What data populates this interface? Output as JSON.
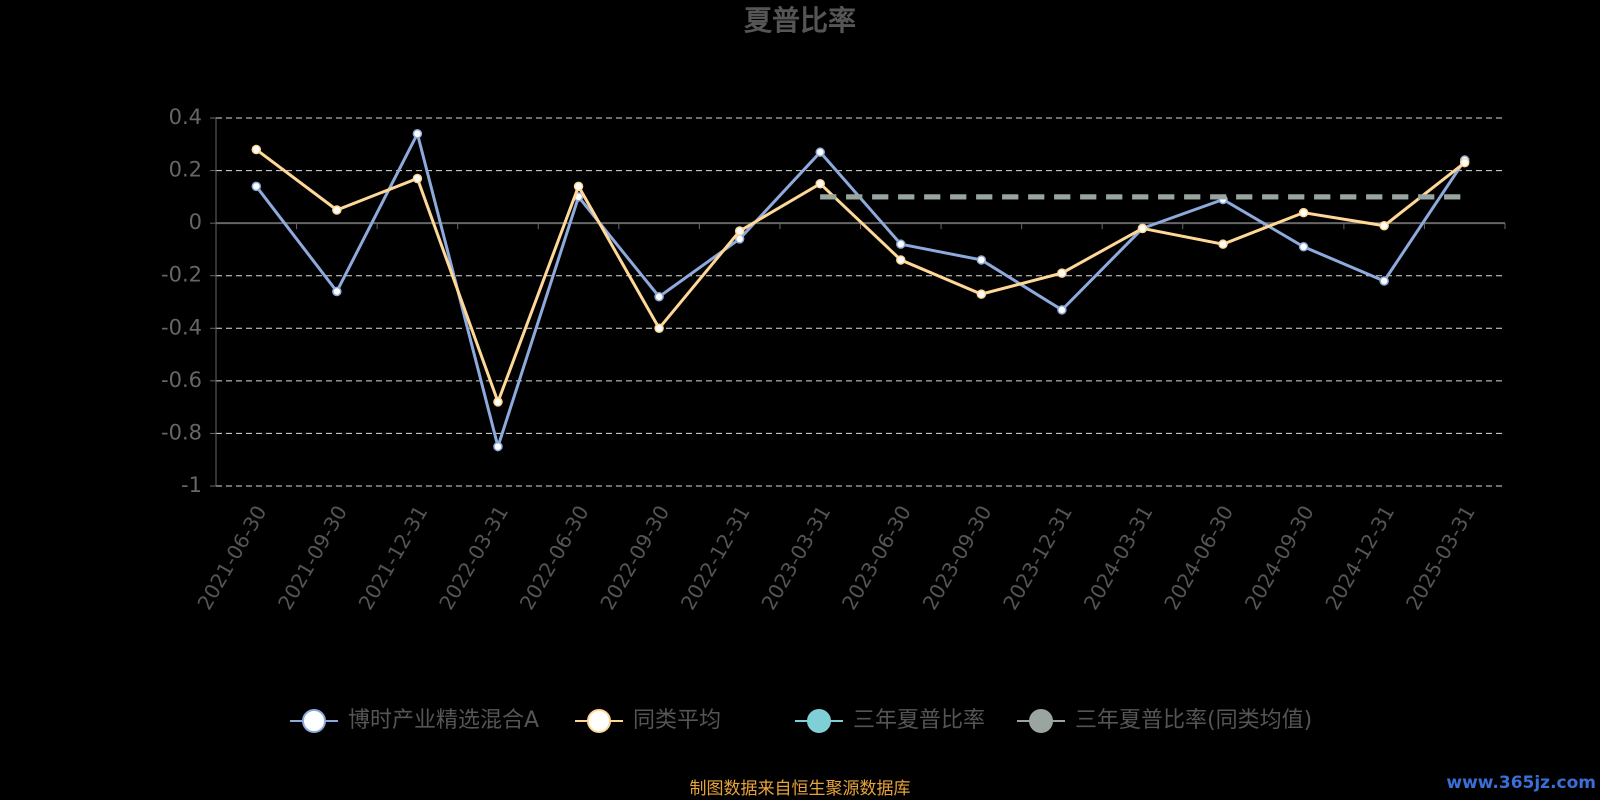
{
  "chart_data": {
    "type": "line",
    "title": "夏普比率",
    "categories": [
      "2021-06-30",
      "2021-09-30",
      "2021-12-31",
      "2022-03-31",
      "2022-06-30",
      "2022-09-30",
      "2022-12-31",
      "2023-03-31",
      "2023-06-30",
      "2023-09-30",
      "2023-12-31",
      "2024-03-31",
      "2024-06-30",
      "2024-09-30",
      "2024-12-31",
      "2025-03-31"
    ],
    "series": [
      {
        "name": "博时产业精选混合A",
        "color": "#8eaadc",
        "values": [
          0.14,
          -0.26,
          0.34,
          -0.85,
          0.1,
          -0.28,
          -0.06,
          0.27,
          -0.08,
          -0.14,
          -0.33,
          -0.02,
          0.09,
          -0.09,
          -0.22,
          0.24
        ]
      },
      {
        "name": "同类平均",
        "color": "#ffd898",
        "values": [
          0.28,
          0.05,
          0.17,
          -0.68,
          0.14,
          -0.4,
          -0.03,
          0.15,
          -0.14,
          -0.27,
          -0.19,
          -0.02,
          -0.08,
          0.04,
          -0.01,
          0.23
        ]
      },
      {
        "name": "三年夏普比率",
        "color": "#7ecfd6",
        "values": [
          null,
          null,
          null,
          null,
          null,
          null,
          null,
          0.1,
          0.1,
          0.1,
          0.1,
          0.1,
          0.1,
          0.1,
          0.1,
          0.1
        ]
      },
      {
        "name": "三年夏普比率(同类均值)",
        "color": "#9aa5a0",
        "values": [
          null,
          null,
          null,
          null,
          null,
          null,
          null,
          0.1,
          0.1,
          0.1,
          0.1,
          0.1,
          0.1,
          0.1,
          0.1,
          0.1
        ]
      }
    ],
    "ylim": [
      -1,
      0.4
    ],
    "yticks": [
      0.4,
      0.2,
      0,
      -0.2,
      -0.4,
      -0.6,
      -0.8,
      -1
    ],
    "grid": true,
    "source": "制图数据来自恒生聚源数据库",
    "watermark": "www.365jz.com"
  }
}
